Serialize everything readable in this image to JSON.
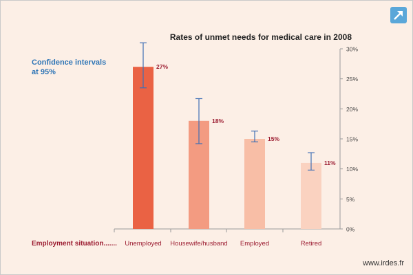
{
  "chart_data": {
    "type": "bar",
    "title": "Rates of unmet needs for medical care in 2008",
    "annotation": "Confidence intervals at 95%",
    "annotation_lines": [
      "Confidence intervals",
      "at 95%"
    ],
    "xlabel": "Employment situation.......",
    "ylabel": "",
    "categories": [
      "Unemployed",
      "Housewife/husband",
      "Employed",
      "Retired"
    ],
    "values": [
      27,
      18,
      15,
      11
    ],
    "value_labels": [
      "27%",
      "18%",
      "15%",
      "11%"
    ],
    "error_low": [
      23.5,
      14.2,
      14.5,
      9.8
    ],
    "error_high": [
      31,
      21.7,
      16.3,
      12.7
    ],
    "bar_colors": [
      "#ea6244",
      "#f39b81",
      "#f8bea6",
      "#fad2c0"
    ],
    "ylim": [
      0,
      30
    ],
    "yticks": [
      0,
      5,
      10,
      15,
      20,
      25,
      30
    ],
    "ytick_labels": [
      "0%",
      "5%",
      "10%",
      "15%",
      "20%",
      "25%",
      "30%"
    ],
    "y_axis_position": "right",
    "grid": false,
    "colors": {
      "annotation": "#2e75b6",
      "xlabel": "#9b1b30",
      "value_label": "#9b1b30",
      "error_bar": "#3f6fb5",
      "axis": "#999999"
    }
  },
  "expand_icon": "expand-arrow-icon",
  "watermark": "www.irdes.fr"
}
